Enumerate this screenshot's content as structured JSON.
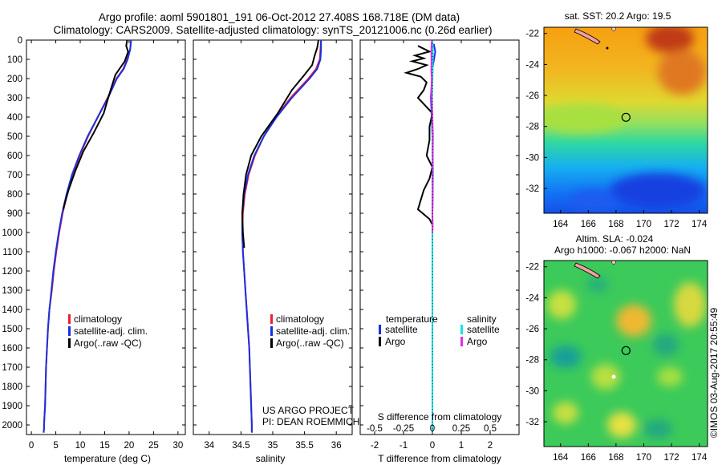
{
  "header": {
    "line1": "Argo profile: aoml 5901801_191 06-Oct-2012 27.408S 168.718E (DM data)",
    "line2": "Climatology: CARS2009. Satellite-adjusted climatology: synTS_20121006.nc (0.26d earlier)"
  },
  "colors": {
    "climatology": "#e8203a",
    "satellite_adj": "#1c2fe0",
    "argo": "#000000",
    "sal_satellite": "#19e0ee",
    "sal_argo": "#e030e0"
  },
  "legend_profiles": [
    "climatology",
    "satellite-adj. clim.",
    "Argo(..raw -QC)"
  ],
  "legend_diff": {
    "temp_title": "temperature",
    "sal_title": "salinity",
    "temp_items": [
      "satellite",
      "Argo"
    ],
    "sal_items": [
      "satellite",
      "Argo"
    ]
  },
  "credits": {
    "line1": "US ARGO PROJECT",
    "line2": "PI: DEAN ROEMMICH"
  },
  "diff_top_label": "S difference from climatology",
  "map_titles": {
    "sst": "sat. SST: 20.2  Argo: 19.5",
    "sla1": "Altim. SLA: -0.024",
    "sla2": "Argo h1000: -0.067 h2000: NaN"
  },
  "footer_vertical": "©IMOS 03-Aug-2017 20:55:49",
  "chart_data": [
    {
      "type": "line",
      "xlabel": "temperature (deg C)",
      "ylabel": "",
      "xlim": [
        -1,
        31.5
      ],
      "ylim": [
        2050,
        0
      ],
      "xticks": [
        0,
        5,
        10,
        15,
        20,
        25,
        30
      ],
      "yticks": [
        0,
        100,
        200,
        300,
        400,
        500,
        600,
        700,
        800,
        900,
        1000,
        1100,
        1200,
        1300,
        1400,
        1500,
        1600,
        1700,
        1800,
        1900,
        2000
      ],
      "series": [
        {
          "name": "climatology",
          "color": "#e8203a",
          "x": [
            20.4,
            20.2,
            19.6,
            18.8,
            17.4,
            15.6,
            13.6,
            11.6,
            9.9,
            8.4,
            7.3,
            6.4,
            5.7,
            5.1,
            4.6,
            4.2,
            3.7,
            3.4,
            3.2,
            3.0,
            2.9,
            2.8,
            2.7,
            2.6,
            2.6,
            2.5
          ],
          "y": [
            0,
            50,
            100,
            150,
            200,
            300,
            400,
            500,
            600,
            700,
            800,
            900,
            1000,
            1100,
            1200,
            1300,
            1400,
            1500,
            1600,
            1700,
            1800,
            1900,
            1950,
            2000,
            2020,
            2040
          ]
        },
        {
          "name": "satellite-adj. clim.",
          "color": "#1c2fe0",
          "x": [
            20.4,
            20.2,
            19.7,
            18.9,
            17.5,
            15.7,
            13.6,
            11.5,
            9.8,
            8.3,
            7.2,
            6.3,
            5.6,
            5.0,
            4.5,
            4.1,
            3.7,
            3.4,
            3.2,
            3.0,
            2.9,
            2.8,
            2.7,
            2.6,
            2.6,
            2.5
          ],
          "y": [
            0,
            50,
            100,
            150,
            200,
            300,
            400,
            500,
            600,
            700,
            800,
            900,
            1000,
            1100,
            1200,
            1300,
            1400,
            1500,
            1600,
            1700,
            1800,
            1900,
            1950,
            2000,
            2020,
            2040
          ]
        },
        {
          "name": "Argo(..raw -QC)",
          "color": "#000000",
          "x": [
            19.6,
            19.4,
            19.8,
            19.1,
            17.2,
            16.2,
            14.8,
            12.8,
            10.6,
            9.0,
            7.6,
            6.5
          ],
          "y": [
            0,
            30,
            60,
            110,
            180,
            260,
            380,
            480,
            580,
            680,
            780,
            880
          ]
        }
      ]
    },
    {
      "type": "line",
      "xlabel": "salinity",
      "ylabel": "",
      "xlim": [
        33.75,
        36.25
      ],
      "ylim": [
        2050,
        0
      ],
      "xticks": [
        34,
        34.5,
        35,
        35.5,
        36
      ],
      "series": [
        {
          "name": "climatology",
          "color": "#e8203a",
          "x": [
            35.76,
            35.75,
            35.74,
            35.68,
            35.56,
            35.28,
            35.05,
            34.86,
            34.72,
            34.62,
            34.56,
            34.53,
            34.52,
            34.53,
            34.55,
            34.57,
            34.59,
            34.61,
            34.63,
            34.64,
            34.65,
            34.66,
            34.67,
            34.67
          ],
          "y": [
            0,
            50,
            100,
            150,
            200,
            300,
            400,
            500,
            600,
            700,
            800,
            900,
            1000,
            1100,
            1200,
            1300,
            1400,
            1500,
            1600,
            1700,
            1800,
            1900,
            2000,
            2040
          ]
        },
        {
          "name": "satellite-adj. clim.",
          "color": "#1c2fe0",
          "x": [
            35.76,
            35.76,
            35.75,
            35.7,
            35.58,
            35.3,
            35.06,
            34.86,
            34.71,
            34.61,
            34.55,
            34.52,
            34.52,
            34.53,
            34.55,
            34.57,
            34.59,
            34.61,
            34.63,
            34.64,
            34.65,
            34.66,
            34.67,
            34.67
          ],
          "y": [
            0,
            50,
            100,
            150,
            200,
            300,
            400,
            500,
            600,
            700,
            800,
            900,
            1000,
            1100,
            1200,
            1300,
            1400,
            1500,
            1600,
            1700,
            1800,
            1900,
            2000,
            2040
          ]
        },
        {
          "name": "Argo(..raw -QC)",
          "color": "#000000",
          "x": [
            35.72,
            35.7,
            35.66,
            35.62,
            35.5,
            35.3,
            35.08,
            34.82,
            34.66,
            34.58,
            34.54,
            34.52,
            34.53,
            34.55
          ],
          "y": [
            0,
            40,
            80,
            130,
            180,
            260,
            380,
            500,
            600,
            700,
            800,
            900,
            1000,
            1080
          ]
        }
      ]
    },
    {
      "type": "line",
      "xlabel": "T difference from climatology",
      "x2label": "S difference from climatology",
      "xlim": [
        -2.5,
        3
      ],
      "ylim": [
        2050,
        0
      ],
      "xticks": [
        -2,
        -1,
        0,
        1,
        2
      ],
      "x2ticks": [
        -0.5,
        -0.25,
        0,
        0.25,
        0.5
      ],
      "series": [
        {
          "name": "T satellite",
          "color": "#1c2fe0",
          "x": [
            0.05,
            0.1,
            0.0,
            -0.05,
            0.0,
            0.02,
            0.0,
            0.0,
            0.0,
            0.0,
            0.0,
            0.0,
            0.0,
            0.0
          ],
          "y": [
            20,
            60,
            150,
            300,
            500,
            700,
            900,
            1000,
            1200,
            1400,
            1600,
            1800,
            2000,
            2040
          ]
        },
        {
          "name": "T Argo",
          "color": "#000000",
          "x": [
            -0.5,
            -0.3,
            -0.1,
            -0.6,
            -0.3,
            -0.7,
            -0.2,
            -0.5,
            -0.9,
            -0.4,
            -0.2,
            -0.3,
            -0.5,
            0.0,
            -0.1,
            -0.1,
            -0.2,
            0.0,
            -0.1,
            -0.3,
            -0.4,
            -0.5,
            -0.1,
            0.0,
            0.0
          ],
          "y": [
            30,
            45,
            60,
            80,
            95,
            110,
            130,
            150,
            170,
            190,
            220,
            260,
            300,
            380,
            450,
            520,
            600,
            660,
            720,
            780,
            830,
            880,
            930,
            960,
            980
          ]
        },
        {
          "name": "S satellite",
          "color": "#19e0ee",
          "x": [
            0.0,
            0.02,
            0.01,
            -0.01,
            0.0,
            0.01,
            0.0,
            0.0,
            0.0,
            0.0,
            0.0,
            0.0,
            0.0,
            0.0
          ],
          "y": [
            0,
            50,
            150,
            300,
            500,
            700,
            900,
            1000,
            1200,
            1400,
            1600,
            1800,
            2000,
            2040
          ]
        },
        {
          "name": "S Argo",
          "color": "#e030e0",
          "x": [
            -0.02,
            -0.04,
            -0.03,
            -0.04,
            -0.02,
            -0.03,
            -0.02,
            0.0,
            0.02,
            0.01,
            0.0,
            0.01,
            0.0,
            0.01,
            0.0
          ],
          "y": [
            0,
            60,
            110,
            160,
            200,
            260,
            320,
            400,
            500,
            600,
            700,
            800,
            900,
            960,
            1000
          ]
        }
      ]
    },
    {
      "type": "heatmap",
      "title": "sat. SST: 20.2  Argo: 19.5",
      "xlim": [
        162.8,
        174.6
      ],
      "ylim": [
        -33.6,
        -21.6
      ],
      "xticks": [
        164,
        166,
        168,
        170,
        172,
        174
      ],
      "yticks": [
        -22,
        -24,
        -26,
        -28,
        -30,
        -32
      ],
      "marker": {
        "lon": 168.718,
        "lat": -27.408
      }
    },
    {
      "type": "heatmap",
      "title": "Altim. SLA: -0.024",
      "subtitle": "Argo h1000: -0.067 h2000: NaN",
      "xlim": [
        162.8,
        174.6
      ],
      "ylim": [
        -33.6,
        -21.6
      ],
      "xticks": [
        164,
        166,
        168,
        170,
        172,
        174
      ],
      "yticks": [
        -22,
        -24,
        -26,
        -28,
        -30,
        -32
      ],
      "marker": {
        "lon": 168.718,
        "lat": -27.408
      }
    }
  ]
}
